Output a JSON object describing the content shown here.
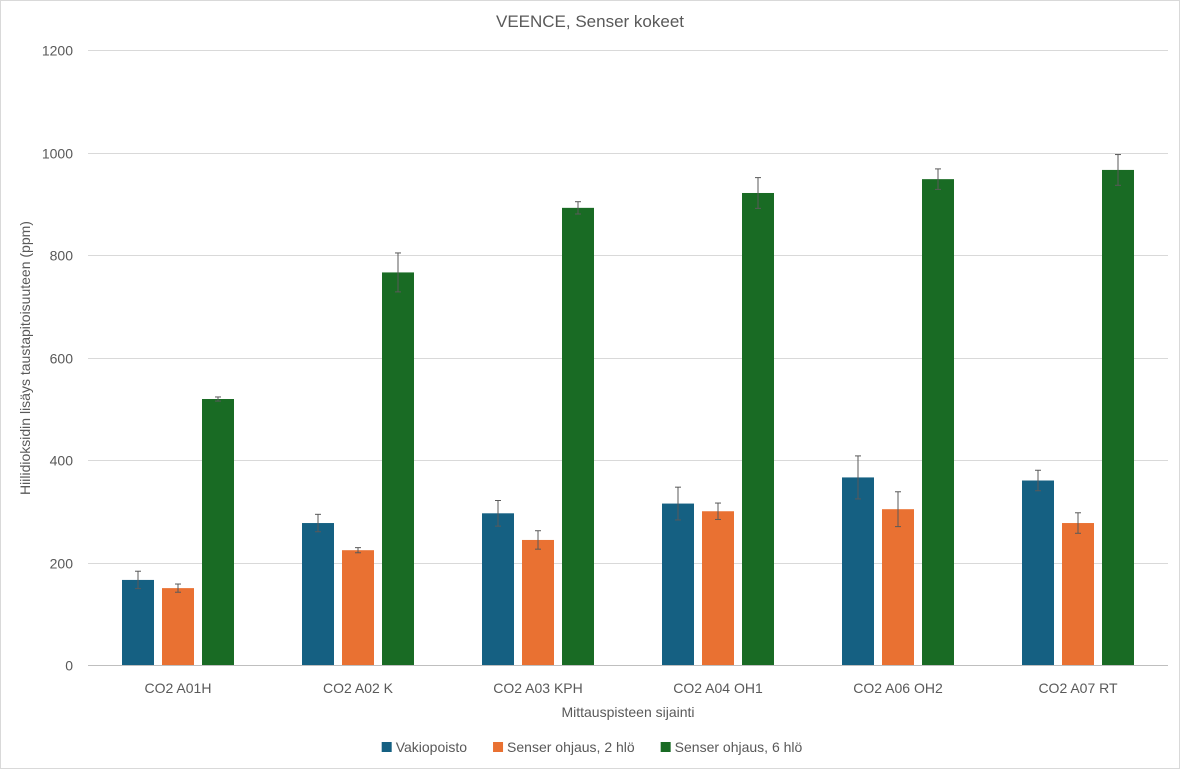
{
  "chart_data": {
    "type": "bar",
    "title": "VEENCE, Senser kokeet",
    "xlabel": "Mittauspisteen sijainti",
    "ylabel": "Hiilidioksidin lisäys taustapitoisuuteen (ppm)",
    "ylim": [
      0,
      1200
    ],
    "yticks": [
      0,
      200,
      400,
      600,
      800,
      1000,
      1200
    ],
    "grid": true,
    "legend_position": "bottom",
    "categories": [
      "CO2 A01H",
      "CO2 A02 K",
      "CO2 A03 KPH",
      "CO2 A04 OH1",
      "CO2 A06 OH2",
      "CO2 A07 RT"
    ],
    "series": [
      {
        "name": "Vakiopoisto",
        "color": "#156082",
        "values": [
          166,
          277,
          296,
          315,
          366,
          360
        ],
        "errors": [
          17,
          17,
          25,
          32,
          42,
          20
        ]
      },
      {
        "name": "Senser ohjaus, 2 hlö",
        "color": "#e97132",
        "values": [
          150,
          224,
          244,
          300,
          304,
          277
        ],
        "errors": [
          8,
          5,
          18,
          16,
          34,
          20
        ]
      },
      {
        "name": "Senser ohjaus, 6 hlö",
        "color": "#196b24",
        "values": [
          519,
          766,
          892,
          921,
          948,
          966
        ],
        "errors": [
          4,
          38,
          12,
          30,
          20,
          30
        ]
      }
    ]
  }
}
